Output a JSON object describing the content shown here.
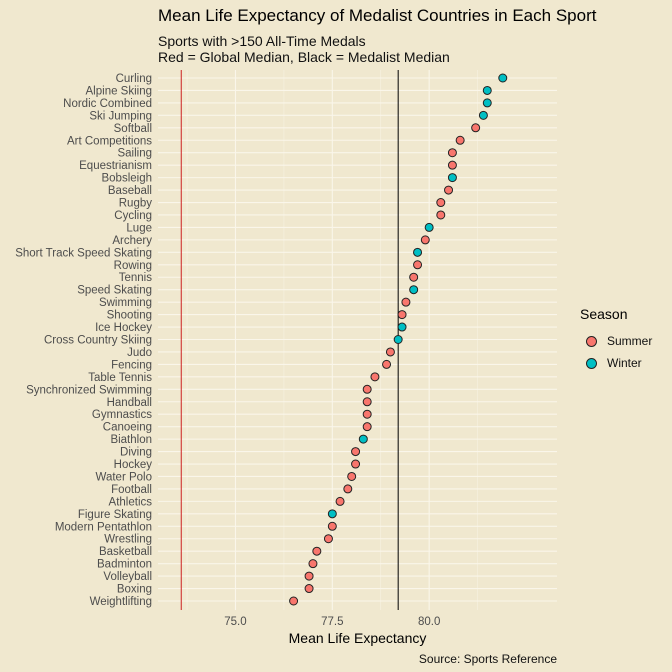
{
  "title": "Mean Life Expectancy of Medalist Countries in Each Sport",
  "subtitle_line1": "Sports with >150 All-Time Medals",
  "subtitle_line2": "Red = Global Median, Black = Medalist Median",
  "caption": "Source: Sports Reference",
  "colors": {
    "background": "#F0E8CF",
    "summer": "#F8766D",
    "winter": "#00BFC4",
    "global_median_line": "#CC2222",
    "medalist_median_line": "#000000"
  },
  "chart_data": {
    "type": "scatter",
    "xlabel": "Mean Life Expectancy",
    "ylabel": "",
    "xlim": [
      73.0,
      83.3
    ],
    "x_ticks": [
      "75.0",
      "77.5",
      "80.0"
    ],
    "x_tick_values": [
      75.0,
      77.5,
      80.0
    ],
    "grid": true,
    "legend": {
      "title": "Season",
      "position": "right",
      "entries": [
        {
          "label": "Summer",
          "color": "#F8766D"
        },
        {
          "label": "Winter",
          "color": "#00BFC4"
        }
      ]
    },
    "global_median": 73.6,
    "medalist_median": 79.2,
    "points": [
      {
        "sport": "Curling",
        "value": 81.9,
        "season": "Winter"
      },
      {
        "sport": "Alpine Skiing",
        "value": 81.5,
        "season": "Winter"
      },
      {
        "sport": "Nordic Combined",
        "value": 81.5,
        "season": "Winter"
      },
      {
        "sport": "Ski Jumping",
        "value": 81.4,
        "season": "Winter"
      },
      {
        "sport": "Softball",
        "value": 81.2,
        "season": "Summer"
      },
      {
        "sport": "Art Competitions",
        "value": 80.8,
        "season": "Summer"
      },
      {
        "sport": "Sailing",
        "value": 80.6,
        "season": "Summer"
      },
      {
        "sport": "Equestrianism",
        "value": 80.6,
        "season": "Summer"
      },
      {
        "sport": "Bobsleigh",
        "value": 80.6,
        "season": "Winter"
      },
      {
        "sport": "Baseball",
        "value": 80.5,
        "season": "Summer"
      },
      {
        "sport": "Rugby",
        "value": 80.3,
        "season": "Summer"
      },
      {
        "sport": "Cycling",
        "value": 80.3,
        "season": "Summer"
      },
      {
        "sport": "Luge",
        "value": 80.0,
        "season": "Winter"
      },
      {
        "sport": "Archery",
        "value": 79.9,
        "season": "Summer"
      },
      {
        "sport": "Short Track Speed Skating",
        "value": 79.7,
        "season": "Winter"
      },
      {
        "sport": "Rowing",
        "value": 79.7,
        "season": "Summer"
      },
      {
        "sport": "Tennis",
        "value": 79.6,
        "season": "Summer"
      },
      {
        "sport": "Speed Skating",
        "value": 79.6,
        "season": "Winter"
      },
      {
        "sport": "Swimming",
        "value": 79.4,
        "season": "Summer"
      },
      {
        "sport": "Shooting",
        "value": 79.3,
        "season": "Summer"
      },
      {
        "sport": "Ice Hockey",
        "value": 79.3,
        "season": "Winter"
      },
      {
        "sport": "Cross Country Skiing",
        "value": 79.2,
        "season": "Winter"
      },
      {
        "sport": "Judo",
        "value": 79.0,
        "season": "Summer"
      },
      {
        "sport": "Fencing",
        "value": 78.9,
        "season": "Summer"
      },
      {
        "sport": "Table Tennis",
        "value": 78.6,
        "season": "Summer"
      },
      {
        "sport": "Synchronized Swimming",
        "value": 78.4,
        "season": "Summer"
      },
      {
        "sport": "Handball",
        "value": 78.4,
        "season": "Summer"
      },
      {
        "sport": "Gymnastics",
        "value": 78.4,
        "season": "Summer"
      },
      {
        "sport": "Canoeing",
        "value": 78.4,
        "season": "Summer"
      },
      {
        "sport": "Biathlon",
        "value": 78.3,
        "season": "Winter"
      },
      {
        "sport": "Diving",
        "value": 78.1,
        "season": "Summer"
      },
      {
        "sport": "Hockey",
        "value": 78.1,
        "season": "Summer"
      },
      {
        "sport": "Water Polo",
        "value": 78.0,
        "season": "Summer"
      },
      {
        "sport": "Football",
        "value": 77.9,
        "season": "Summer"
      },
      {
        "sport": "Athletics",
        "value": 77.7,
        "season": "Summer"
      },
      {
        "sport": "Figure Skating",
        "value": 77.5,
        "season": "Winter"
      },
      {
        "sport": "Modern Pentathlon",
        "value": 77.5,
        "season": "Summer"
      },
      {
        "sport": "Wrestling",
        "value": 77.4,
        "season": "Summer"
      },
      {
        "sport": "Basketball",
        "value": 77.1,
        "season": "Summer"
      },
      {
        "sport": "Badminton",
        "value": 77.0,
        "season": "Summer"
      },
      {
        "sport": "Volleyball",
        "value": 76.9,
        "season": "Summer"
      },
      {
        "sport": "Boxing",
        "value": 76.9,
        "season": "Summer"
      },
      {
        "sport": "Weightlifting",
        "value": 76.5,
        "season": "Summer"
      }
    ]
  }
}
